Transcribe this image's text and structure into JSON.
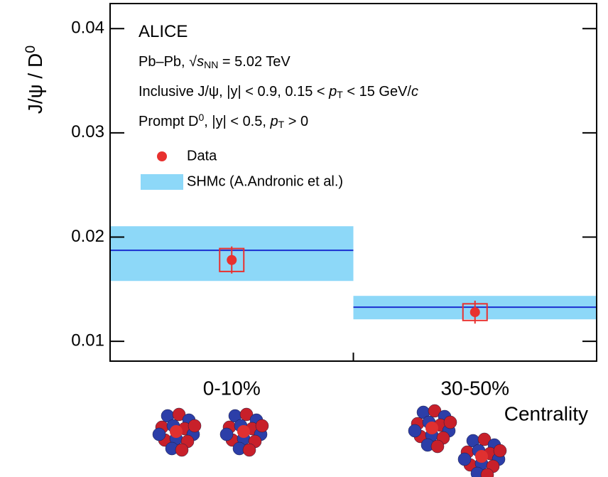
{
  "chart_data": {
    "type": "scatter",
    "ylabel": [
      {
        "text": "J/ψ / D"
      },
      {
        "text": "0",
        "style": "sup"
      }
    ],
    "xlabel": "Centrality",
    "categories": [
      "0-10%",
      "30-50%"
    ],
    "annotations": [
      [
        {
          "text": "ALICE",
          "style": "big"
        }
      ],
      [
        {
          "text": "Pb–Pb, √"
        },
        {
          "text": "s",
          "style": "italic"
        },
        {
          "text": "NN",
          "style": "sub"
        },
        {
          "text": " = 5.02 TeV"
        }
      ],
      [
        {
          "text": "Inclusive J/ψ, |y| < 0.9, 0.15 < "
        },
        {
          "text": "p",
          "style": "italic"
        },
        {
          "text": "T",
          "style": "sub"
        },
        {
          "text": " <  15 GeV/"
        },
        {
          "text": "c",
          "style": "italic"
        }
      ],
      [
        {
          "text": "Prompt D"
        },
        {
          "text": "0",
          "style": "sup"
        },
        {
          "text": ", |y| < 0.5, "
        },
        {
          "text": "p",
          "style": "italic"
        },
        {
          "text": "T",
          "style": "sub"
        },
        {
          "text": " > 0"
        }
      ]
    ],
    "series": [
      {
        "name": "Data",
        "type": "points",
        "color": "#e8312f",
        "values": [
          0.0178,
          0.0128
        ],
        "stat_errors": [
          0.0013,
          0.0011
        ],
        "syst_errors": [
          0.0011,
          0.0008
        ]
      },
      {
        "name": "SHMc (A.Andronic et al.)",
        "type": "band",
        "color": "#8dd8f8",
        "line_color": "#1a2fd0",
        "values": [
          0.01873,
          0.01327
        ],
        "lower": [
          0.01579,
          0.01211
        ],
        "upper": [
          0.02104,
          0.01436
        ]
      }
    ],
    "ylim": [
      0.0081,
      0.0424
    ],
    "yticks": [
      0.01,
      0.02,
      0.03,
      0.04
    ]
  }
}
